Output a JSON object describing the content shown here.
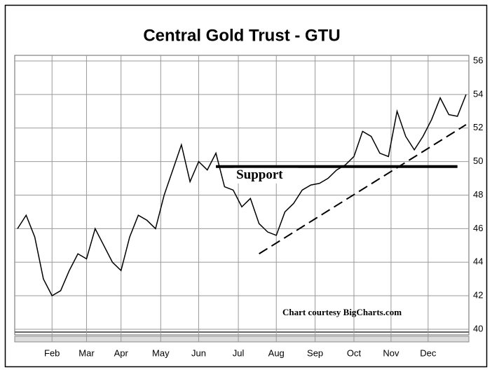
{
  "chart_data": {
    "type": "line",
    "title": "Central Gold Trust - GTU",
    "values": [
      46.0,
      46.8,
      45.5,
      43,
      42,
      42.3,
      43.5,
      44.5,
      44.2,
      46,
      45,
      44,
      43.5,
      45.5,
      46.8,
      46.5,
      46,
      48,
      49.5,
      51,
      48.8,
      50,
      49.5,
      50.5,
      48.5,
      48.3,
      47.3,
      47.8,
      46.3,
      45.8,
      45.6,
      47,
      47.5,
      48.3,
      48.6,
      48.7,
      49,
      49.5,
      49.8,
      50.3,
      51.8,
      51.5,
      50.5,
      50.3,
      53,
      51.5,
      50.7,
      51.5,
      52.5,
      53.8,
      52.8,
      52.7,
      54
    ],
    "color": "#000000",
    "xlim": [
      0,
      52
    ],
    "xticks": [
      {
        "value": 4,
        "label": "Feb"
      },
      {
        "value": 8,
        "label": "Mar"
      },
      {
        "value": 12,
        "label": "Apr"
      },
      {
        "value": 16.6,
        "label": "May"
      },
      {
        "value": 21,
        "label": "Jun"
      },
      {
        "value": 25.6,
        "label": "Jul"
      },
      {
        "value": 30,
        "label": "Aug"
      },
      {
        "value": 34.5,
        "label": "Sep"
      },
      {
        "value": 39,
        "label": "Oct"
      },
      {
        "value": 43.3,
        "label": "Nov"
      },
      {
        "value": 47.6,
        "label": "Dec"
      }
    ],
    "ylim": [
      40,
      56
    ],
    "yticks": [
      40,
      42,
      44,
      46,
      48,
      50,
      52,
      54,
      56
    ],
    "grid": true,
    "support": {
      "label": "Support",
      "value": 49.7,
      "x": [
        23,
        51
      ]
    },
    "trend": {
      "x": [
        28,
        52
      ],
      "y": [
        44.5,
        52.2
      ]
    },
    "credit": "Chart courtesy BigCharts.com"
  }
}
